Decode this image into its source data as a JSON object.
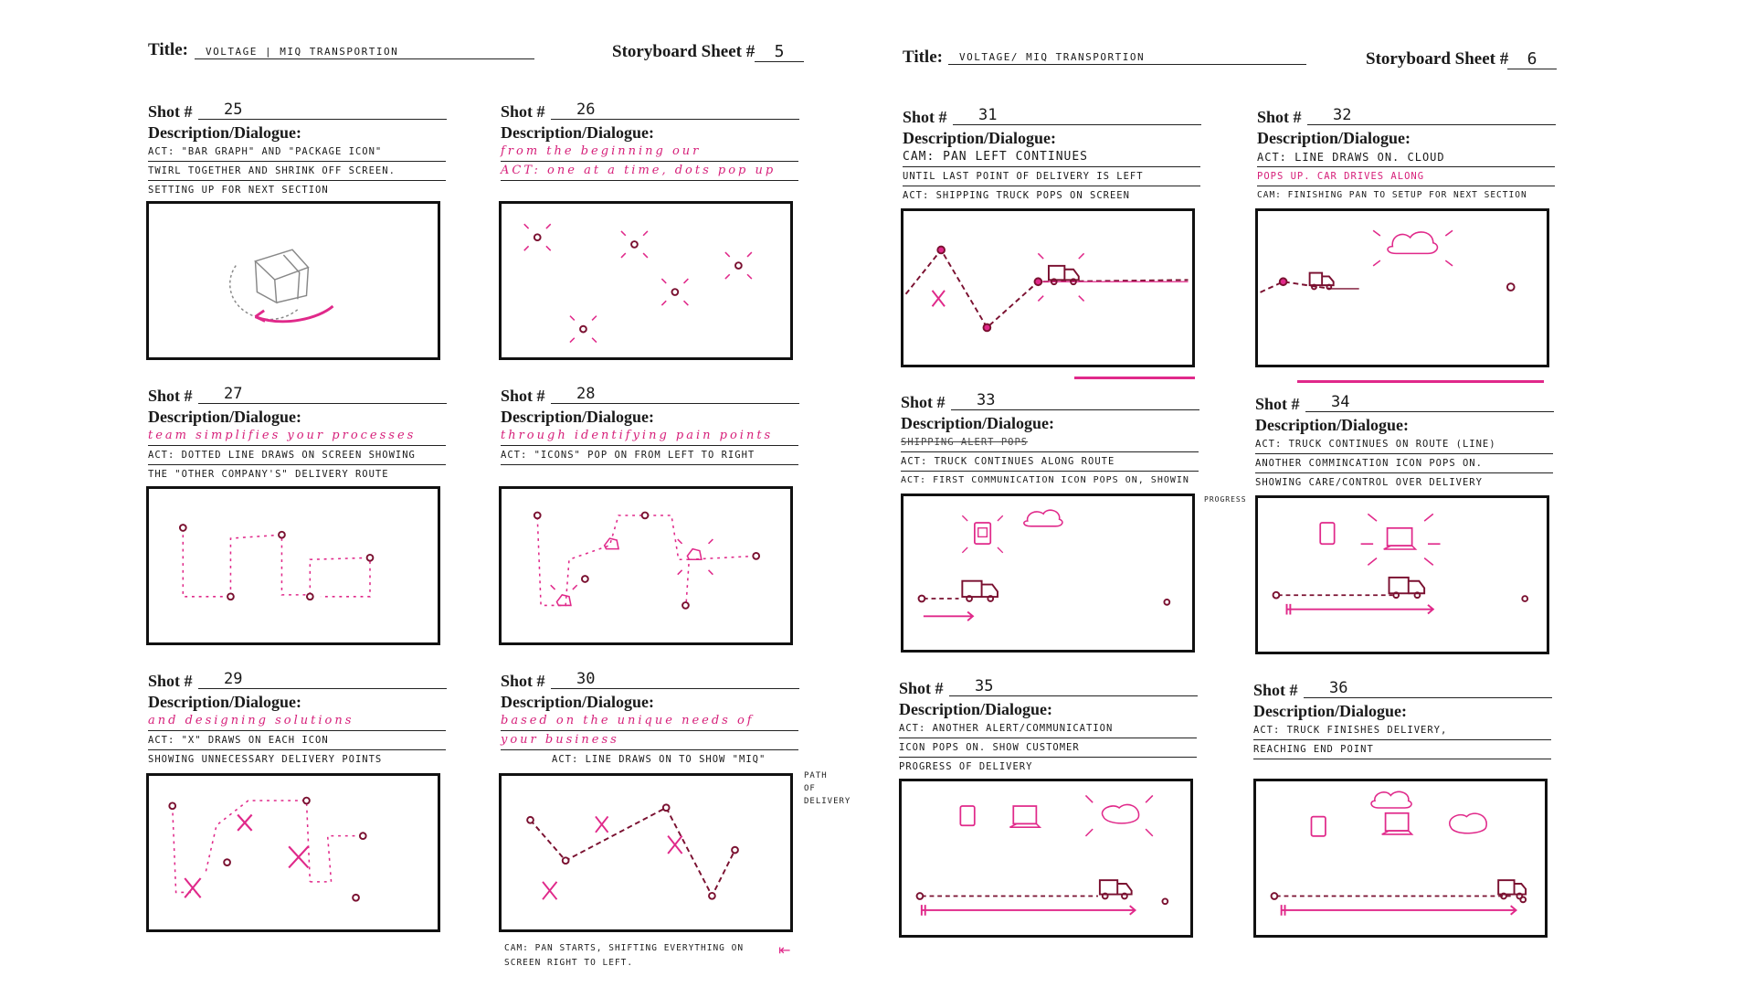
{
  "sheets": [
    {
      "title_label": "Title:",
      "title_value": "VOLTAGE | MIQ TRANSPORTION",
      "sheet_label": "Storyboard Sheet #",
      "sheet_number": "5",
      "shots": [
        {
          "label": "Shot #",
          "number": "25",
          "desc_label": "Description/Dialogue:",
          "lines": [
            "ACT: \"BAR GRAPH\" AND \"PACKAGE ICON\"",
            "TWIRL TOGETHER AND SHRINK OFF SCREEN.",
            "SETTING UP FOR NEXT SECTION"
          ]
        },
        {
          "label": "Shot #",
          "number": "26",
          "desc_label": "Description/Dialogue:",
          "lines": [
            "from the beginning our",
            "ACT: one at a time, dots pop up"
          ]
        },
        {
          "label": "Shot #",
          "number": "27",
          "desc_label": "Description/Dialogue:",
          "lines": [
            "team simplifies your processes",
            "ACT: DOTTED LINE DRAWS ON SCREEN SHOWING",
            "THE \"OTHER COMPANY'S\" DELIVERY ROUTE"
          ]
        },
        {
          "label": "Shot #",
          "number": "28",
          "desc_label": "Description/Dialogue:",
          "lines": [
            "through identifying pain points",
            "ACT: \"ICONS\" POP ON FROM LEFT TO RIGHT"
          ]
        },
        {
          "label": "Shot #",
          "number": "29",
          "desc_label": "Description/Dialogue:",
          "lines": [
            "and designing solutions",
            "ACT: \"X\" DRAWS ON EACH ICON",
            "SHOWING UNNECESSARY DELIVERY POINTS"
          ]
        },
        {
          "label": "Shot #",
          "number": "30",
          "desc_label": "Description/Dialogue:",
          "lines": [
            "based on the unique needs of",
            "your business",
            "ACT: LINE DRAWS ON TO SHOW \"MIQ\""
          ],
          "side_note": [
            "PATH",
            "OF",
            "DELIVERY"
          ],
          "cam_note": [
            "CAM: PAN STARTS, SHIFTING EVERYTHING ON",
            "SCREEN RIGHT TO LEFT."
          ]
        }
      ]
    },
    {
      "title_label": "Title:",
      "title_value": "VOLTAGE/ MIQ TRANSPORTION",
      "sheet_label": "Storyboard Sheet #",
      "sheet_number": "6",
      "shots": [
        {
          "label": "Shot #",
          "number": "31",
          "desc_label": "Description/Dialogue:",
          "lines": [
            "CAM: PAN LEFT CONTINUES",
            "UNTIL LAST POINT OF DELIVERY IS LEFT",
            "ACT: SHIPPING TRUCK POPS ON SCREEN"
          ]
        },
        {
          "label": "Shot #",
          "number": "32",
          "desc_label": "Description/Dialogue:",
          "lines": [
            "ACT: LINE DRAWS ON. CLOUD",
            "POPS UP. CAR DRIVES ALONG",
            "CAM: FINISHING PAN TO SETUP FOR NEXT SECTION"
          ]
        },
        {
          "label": "Shot #",
          "number": "33",
          "desc_label": "Description/Dialogue:",
          "lines": [
            "SHIPPING ALERT POPS",
            "ACT: TRUCK CONTINUES ALONG ROUTE",
            "ACT: FIRST COMMUNICATION ICON POPS ON, SHOWIN"
          ],
          "side_note": [
            "PROGRESS"
          ]
        },
        {
          "label": "Shot #",
          "number": "34",
          "desc_label": "Description/Dialogue:",
          "lines": [
            "ACT: TRUCK CONTINUES ON ROUTE (LINE)",
            "ANOTHER COMMINCATION ICON POPS ON.",
            "SHOWING CARE/CONTROL OVER DELIVERY"
          ]
        },
        {
          "label": "Shot #",
          "number": "35",
          "desc_label": "Description/Dialogue:",
          "lines": [
            "ACT: ANOTHER ALERT/COMMUNICATION",
            "ICON POPS ON. SHOW CUSTOMER",
            "PROGRESS OF DELIVERY"
          ]
        },
        {
          "label": "Shot #",
          "number": "36",
          "desc_label": "Description/Dialogue:",
          "lines": [
            "ACT: TRUCK FINISHES DELIVERY,",
            "REACHING END POINT"
          ]
        }
      ]
    }
  ]
}
